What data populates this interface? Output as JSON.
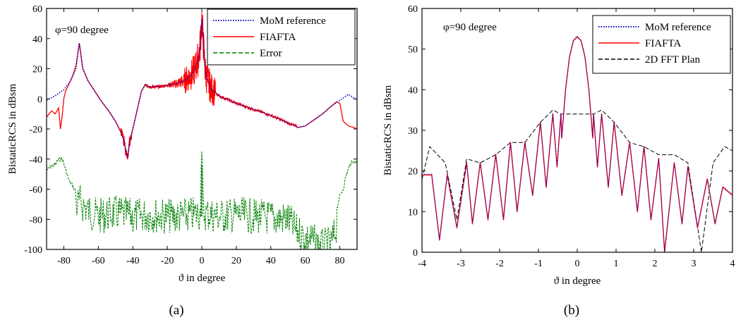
{
  "figure": {
    "captions": [
      "(a)",
      "(b)"
    ]
  },
  "chart_data": [
    {
      "type": "line",
      "panel_label": "(a)",
      "annotation": "φ=90 degree",
      "xlabel": "ϑ in degree",
      "ylabel": "BistaticRCS in dBsm",
      "xlim": [
        -90,
        90
      ],
      "ylim": [
        -100,
        60
      ],
      "xticks": [
        -80,
        -60,
        -40,
        -20,
        0,
        20,
        40,
        60,
        80
      ],
      "yticks": [
        -100,
        -80,
        -60,
        -40,
        -20,
        0,
        20,
        40,
        60
      ],
      "grid": false,
      "legend": "top-right",
      "colors": {
        "mom": "#0000cc",
        "fiafta": "#ff0000",
        "error": "#008000"
      },
      "series": [
        {
          "name": "MoM reference",
          "style": "dotted",
          "x": [
            -90,
            -85,
            -80,
            -76,
            -73,
            -71,
            -69,
            -66,
            -62,
            -58,
            -54,
            -50,
            -47,
            -45,
            -44,
            -43,
            -42,
            -40,
            -37,
            -35,
            -33,
            -30,
            -25,
            -20,
            -15,
            -10,
            -6,
            -4,
            -2,
            -1,
            0,
            1,
            2,
            4,
            6,
            10,
            20,
            30,
            40,
            50,
            56,
            60,
            65,
            70,
            75,
            80,
            85,
            90
          ],
          "values": [
            -1,
            2,
            6,
            12,
            20,
            37,
            20,
            12,
            5,
            -2,
            -8,
            -15,
            -22,
            -28,
            -34,
            -39,
            -30,
            -20,
            -5,
            5,
            9,
            8,
            8,
            9,
            10,
            12,
            16,
            20,
            27,
            35,
            53,
            35,
            18,
            10,
            6,
            2,
            -3,
            -7,
            -11,
            -16,
            -19,
            -18,
            -14,
            -10,
            -5,
            -1,
            3,
            -1
          ]
        },
        {
          "name": "FIAFTA",
          "style": "solid",
          "x": [
            -90,
            -87,
            -85,
            -83,
            -82,
            -81,
            -80,
            -79,
            -77,
            -75,
            -73,
            -71,
            -69,
            -66,
            -62,
            -58,
            -54,
            -50,
            -47,
            -45,
            -44,
            -43,
            -42,
            -40,
            -37,
            -35,
            -33,
            -30,
            -25,
            -20,
            -15,
            -10,
            -6,
            -4,
            -2,
            -1,
            0,
            1,
            2,
            4,
            6,
            10,
            20,
            30,
            40,
            50,
            56,
            60,
            65,
            70,
            75,
            78,
            80,
            82,
            85,
            88,
            90
          ],
          "values": [
            -12,
            -8,
            -10,
            -6,
            -20,
            -12,
            0,
            5,
            10,
            15,
            22,
            37,
            20,
            12,
            5,
            -2,
            -8,
            -15,
            -22,
            -28,
            -35,
            -40,
            -30,
            -20,
            -5,
            5,
            9,
            8,
            8,
            9,
            10,
            12,
            16,
            20,
            27,
            35,
            53,
            35,
            18,
            10,
            6,
            2,
            -3,
            -7,
            -11,
            -16,
            -19,
            -18,
            -14,
            -10,
            -5,
            -2,
            -3,
            -15,
            -18,
            -19,
            -20
          ]
        },
        {
          "name": "Error",
          "style": "dashed",
          "x": [
            -90,
            -87,
            -85,
            -83,
            -81,
            -79,
            -77,
            -75,
            -73,
            -71,
            -65,
            -60,
            -50,
            -40,
            -30,
            -20,
            -10,
            -1,
            0,
            1,
            10,
            20,
            30,
            40,
            50,
            55,
            60,
            65,
            70,
            75,
            77,
            79,
            80,
            82,
            84,
            86,
            88,
            90
          ],
          "values": [
            -58,
            -55,
            -54,
            -51,
            -50,
            -57,
            -65,
            -68,
            -72,
            -68,
            -75,
            -78,
            -76,
            -78,
            -77,
            -78,
            -78,
            -76,
            -44,
            -76,
            -78,
            -77,
            -78,
            -79,
            -80,
            -88,
            -92,
            -95,
            -98,
            -97,
            -90,
            -80,
            -75,
            -70,
            -60,
            -54,
            -52,
            -53
          ]
        }
      ]
    },
    {
      "type": "line",
      "panel_label": "(b)",
      "annotation": "φ=90 degree",
      "xlabel": "ϑ in degree",
      "ylabel": "BistaticRCS in dBsm",
      "xlim": [
        -4,
        4
      ],
      "ylim": [
        0,
        60
      ],
      "xticks": [
        -4,
        -3,
        -2,
        -1,
        0,
        1,
        2,
        3,
        4
      ],
      "yticks": [
        0,
        10,
        20,
        30,
        40,
        50,
        60
      ],
      "grid": false,
      "legend": "top-right",
      "colors": {
        "mom": "#0000cc",
        "fiafta": "#ff0000",
        "fft": "#000000"
      },
      "sidelobe_peaks": {
        "x": [
          -3.75,
          -3.35,
          -2.85,
          -2.5,
          -2.1,
          -1.72,
          -1.35,
          -0.95,
          -0.63,
          -0.42,
          0.42,
          0.63,
          0.95,
          1.35,
          1.72,
          2.1,
          2.5,
          2.85,
          3.35,
          3.75
        ],
        "values": [
          19,
          19,
          22,
          22,
          24,
          27,
          27,
          32,
          34,
          34,
          34,
          34,
          32,
          27,
          26,
          23,
          22,
          21,
          18,
          16
        ]
      },
      "nulls": {
        "x": [
          -3.55,
          -3.1,
          -2.7,
          -2.3,
          -1.9,
          -1.55,
          -1.15,
          -0.8,
          -0.52,
          0.52,
          0.8,
          1.15,
          1.55,
          1.9,
          2.25,
          2.7,
          3.1,
          3.55
        ],
        "values": [
          3,
          6,
          7,
          8,
          8,
          10,
          14,
          16,
          21,
          21,
          16,
          14,
          10,
          8,
          0,
          7,
          6,
          7
        ]
      },
      "series": [
        {
          "name": "MoM reference",
          "style": "dotted",
          "x": [
            -0.4,
            -0.3,
            -0.2,
            -0.1,
            0,
            0.1,
            0.2,
            0.3,
            0.4
          ],
          "values": [
            28,
            40,
            48,
            52,
            53,
            52,
            48,
            40,
            28
          ]
        },
        {
          "name": "FIAFTA",
          "style": "solid",
          "x": [
            -0.4,
            -0.3,
            -0.2,
            -0.1,
            0,
            0.1,
            0.2,
            0.3,
            0.4
          ],
          "values": [
            28,
            40,
            48,
            52,
            53,
            52,
            48,
            40,
            28
          ]
        },
        {
          "name": "2D FFT Plan",
          "style": "dashed",
          "x": [
            -4,
            -3.8,
            -3.6,
            -3.4,
            -3.1,
            -2.85,
            -2.5,
            -2.1,
            -1.72,
            -1.35,
            -0.95,
            -0.63,
            -0.42,
            0.42,
            0.63,
            0.95,
            1.35,
            1.72,
            2.1,
            2.5,
            2.85,
            3.2,
            3.5,
            3.8,
            4
          ],
          "values": [
            18,
            26,
            24,
            22,
            8,
            23,
            22,
            24,
            27,
            27,
            32,
            35,
            34,
            34,
            35,
            32,
            27,
            26,
            24,
            24,
            22,
            0,
            22,
            26,
            25
          ]
        }
      ]
    }
  ]
}
